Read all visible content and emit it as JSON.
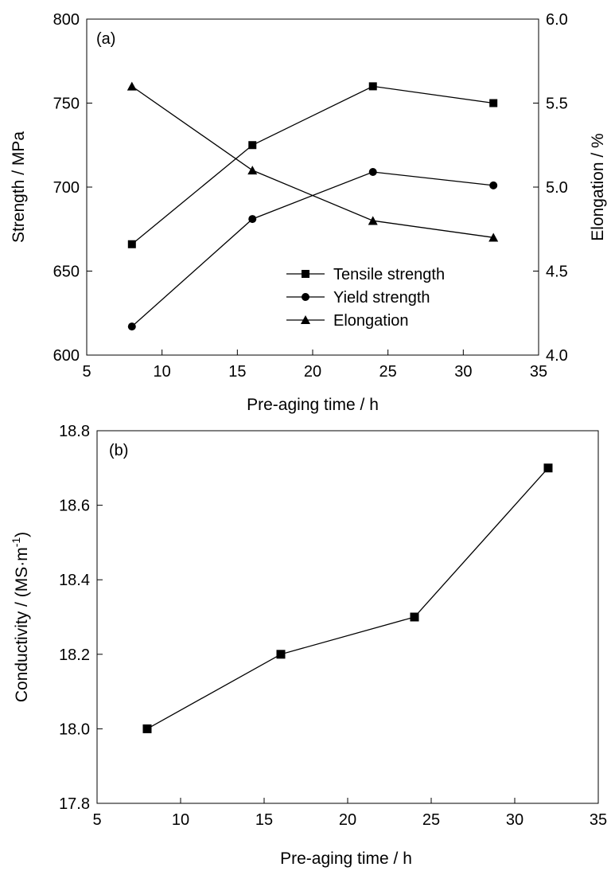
{
  "chart_data": [
    {
      "panel_label": "(a)",
      "type": "line",
      "xlabel": "Pre-aging time / h",
      "ylabel": "Strength / MPa",
      "y2label": "Elongation / %",
      "xlim": [
        5,
        35
      ],
      "ylim": [
        600,
        800
      ],
      "y2lim": [
        4.0,
        6.0
      ],
      "xticks": [
        "5",
        "10",
        "15",
        "20",
        "25",
        "30",
        "35"
      ],
      "yticks": [
        "600",
        "650",
        "700",
        "750",
        "800"
      ],
      "y2ticks": [
        "4.0",
        "4.5",
        "5.0",
        "5.5",
        "6.0"
      ],
      "legend_position": "center-right",
      "grid": false,
      "x": [
        8,
        16,
        24,
        32
      ],
      "series": [
        {
          "name": "Tensile strength",
          "marker": "square",
          "axis": "left",
          "values": [
            666,
            725,
            760,
            750
          ]
        },
        {
          "name": "Yield strength",
          "marker": "circle",
          "axis": "left",
          "values": [
            617,
            681,
            709,
            701
          ]
        },
        {
          "name": "Elongation",
          "marker": "triangle",
          "axis": "right",
          "values": [
            5.6,
            5.1,
            4.8,
            4.7
          ]
        }
      ]
    },
    {
      "panel_label": "(b)",
      "type": "line",
      "xlabel": "Pre-aging time / h",
      "ylabel": "Conductivity / (MS·m",
      "ylabel_superscript": "-1",
      "ylabel_suffix": ")",
      "xlim": [
        5,
        35
      ],
      "ylim": [
        17.8,
        18.8
      ],
      "xticks": [
        "5",
        "10",
        "15",
        "20",
        "25",
        "30",
        "35"
      ],
      "yticks": [
        "17.8",
        "18.0",
        "18.2",
        "18.4",
        "18.6",
        "18.8"
      ],
      "grid": false,
      "x": [
        8,
        16,
        24,
        32
      ],
      "series": [
        {
          "marker": "square",
          "axis": "left",
          "values": [
            18.0,
            18.2,
            18.3,
            18.7
          ]
        }
      ]
    }
  ]
}
